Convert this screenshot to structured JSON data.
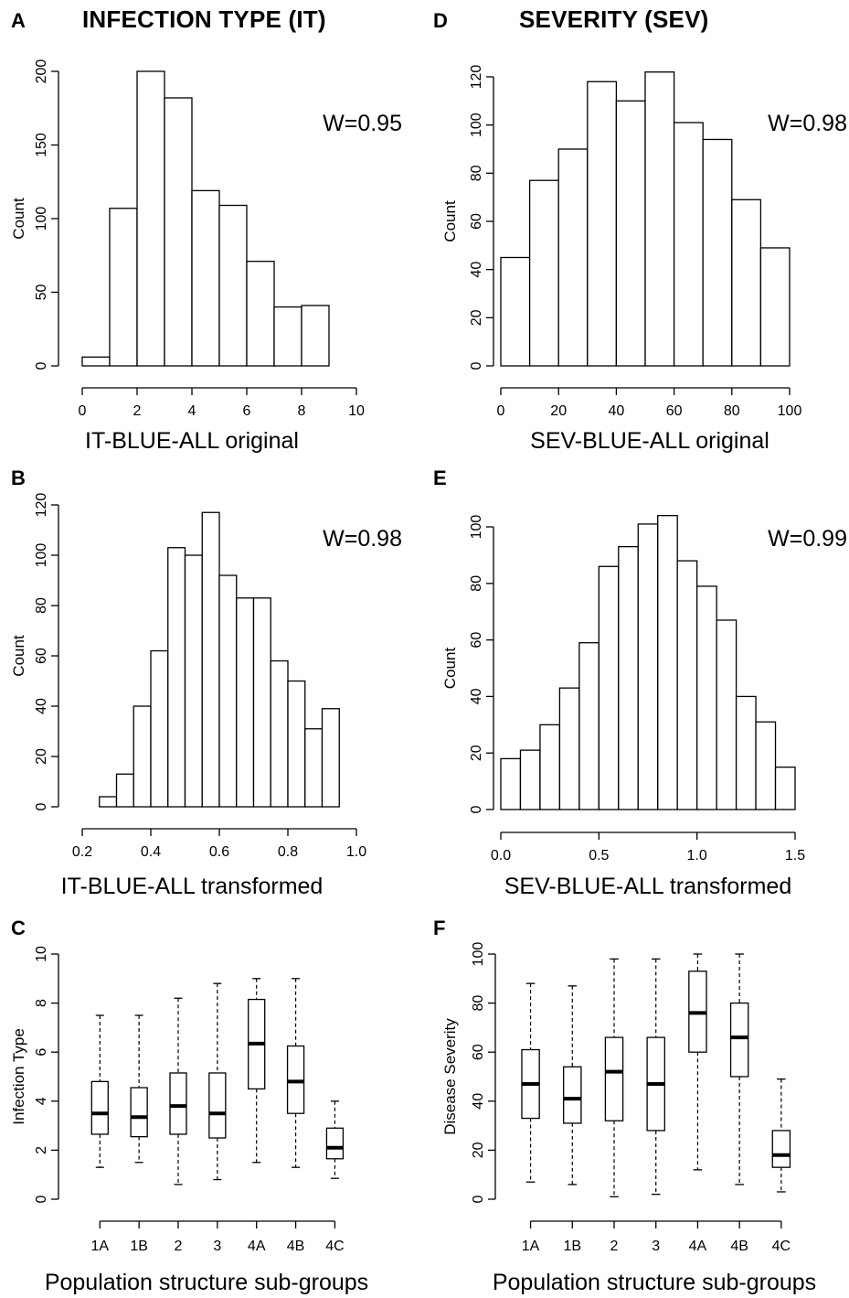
{
  "headers": {
    "left": "INFECTION TYPE (IT)",
    "right": "SEVERITY (SEV)"
  },
  "panel_letters": [
    "A",
    "B",
    "C",
    "D",
    "E",
    "F"
  ],
  "chart_data": [
    {
      "id": "A",
      "type": "bar",
      "bins": [
        [
          0,
          1
        ],
        [
          1,
          2
        ],
        [
          2,
          3
        ],
        [
          3,
          4
        ],
        [
          4,
          5
        ],
        [
          5,
          6
        ],
        [
          6,
          7
        ],
        [
          7,
          8
        ],
        [
          8,
          9
        ]
      ],
      "values": [
        6,
        107,
        200,
        182,
        119,
        109,
        71,
        40,
        41
      ],
      "xlim": [
        0,
        10
      ],
      "ylim": [
        0,
        200
      ],
      "xticks": [
        0,
        2,
        4,
        6,
        8,
        10
      ],
      "yticks": [
        0,
        50,
        100,
        150,
        200
      ],
      "xlabel": "IT-BLUE-ALL original",
      "ylabel": "Count",
      "annotation": "W=0.95",
      "grid": false
    },
    {
      "id": "B",
      "type": "bar",
      "bins": [
        [
          0.25,
          0.3
        ],
        [
          0.3,
          0.35
        ],
        [
          0.35,
          0.4
        ],
        [
          0.4,
          0.45
        ],
        [
          0.45,
          0.5
        ],
        [
          0.5,
          0.55
        ],
        [
          0.55,
          0.6
        ],
        [
          0.6,
          0.65
        ],
        [
          0.65,
          0.7
        ],
        [
          0.7,
          0.75
        ],
        [
          0.75,
          0.8
        ],
        [
          0.8,
          0.85
        ],
        [
          0.85,
          0.9
        ],
        [
          0.9,
          0.95
        ]
      ],
      "values": [
        4,
        13,
        40,
        62,
        103,
        100,
        117,
        92,
        83,
        83,
        58,
        50,
        31,
        39
      ],
      "xlim": [
        0.2,
        1.0
      ],
      "ylim": [
        0,
        120
      ],
      "xticks": [
        "0.2",
        "0.4",
        "0.6",
        "0.8",
        "1.0"
      ],
      "yticks": [
        0,
        20,
        40,
        60,
        80,
        100,
        120
      ],
      "xlabel": "IT-BLUE-ALL transformed",
      "ylabel": "Count",
      "annotation": "W=0.98",
      "grid": false
    },
    {
      "id": "C",
      "type": "box",
      "categories": [
        "1A",
        "1B",
        "2",
        "3",
        "4A",
        "4B",
        "4C"
      ],
      "boxes": [
        {
          "min": 1.3,
          "q1": 2.65,
          "median": 3.5,
          "q3": 4.8,
          "max": 7.5
        },
        {
          "min": 1.5,
          "q1": 2.55,
          "median": 3.35,
          "q3": 4.55,
          "max": 7.5
        },
        {
          "min": 0.6,
          "q1": 2.65,
          "median": 3.8,
          "q3": 5.15,
          "max": 8.2
        },
        {
          "min": 0.8,
          "q1": 2.5,
          "median": 3.5,
          "q3": 5.15,
          "max": 8.8
        },
        {
          "min": 1.5,
          "q1": 4.5,
          "median": 6.35,
          "q3": 8.15,
          "max": 9.0
        },
        {
          "min": 1.3,
          "q1": 3.5,
          "median": 4.8,
          "q3": 6.25,
          "max": 9.0
        },
        {
          "min": 0.85,
          "q1": 1.65,
          "median": 2.1,
          "q3": 2.9,
          "max": 4.0
        }
      ],
      "ylim": [
        0,
        10
      ],
      "yticks": [
        0,
        2,
        4,
        6,
        8,
        10
      ],
      "xlabel": "Population structure sub-groups",
      "ylabel": "Infection Type",
      "grid": false
    },
    {
      "id": "D",
      "type": "bar",
      "bins": [
        [
          0,
          10
        ],
        [
          10,
          20
        ],
        [
          20,
          30
        ],
        [
          30,
          40
        ],
        [
          40,
          50
        ],
        [
          50,
          60
        ],
        [
          60,
          70
        ],
        [
          70,
          80
        ],
        [
          80,
          90
        ],
        [
          90,
          100
        ]
      ],
      "values": [
        45,
        77,
        90,
        118,
        110,
        122,
        101,
        94,
        69,
        49
      ],
      "xlim": [
        0,
        100
      ],
      "ylim": [
        0,
        120
      ],
      "xticks": [
        0,
        20,
        40,
        60,
        80,
        100
      ],
      "yticks": [
        0,
        20,
        40,
        60,
        80,
        100,
        120
      ],
      "xlabel": "SEV-BLUE-ALL original",
      "ylabel": "Count",
      "annotation": "W=0.98",
      "grid": false
    },
    {
      "id": "E",
      "type": "bar",
      "bins": [
        [
          0,
          0.1
        ],
        [
          0.1,
          0.2
        ],
        [
          0.2,
          0.3
        ],
        [
          0.3,
          0.4
        ],
        [
          0.4,
          0.5
        ],
        [
          0.5,
          0.6
        ],
        [
          0.6,
          0.7
        ],
        [
          0.7,
          0.8
        ],
        [
          0.8,
          0.9
        ],
        [
          0.9,
          1.0
        ],
        [
          1.0,
          1.1
        ],
        [
          1.1,
          1.2
        ],
        [
          1.2,
          1.3
        ],
        [
          1.3,
          1.4
        ],
        [
          1.4,
          1.5
        ]
      ],
      "values": [
        18,
        21,
        30,
        43,
        59,
        86,
        93,
        101,
        104,
        88,
        79,
        67,
        40,
        31,
        15
      ],
      "xlim": [
        0,
        1.5
      ],
      "ylim": [
        0,
        100
      ],
      "xticks": [
        "0.0",
        "0.5",
        "1.0",
        "1.5"
      ],
      "yticks": [
        0,
        20,
        40,
        60,
        80,
        100
      ],
      "xlabel": "SEV-BLUE-ALL transformed",
      "ylabel": "Count",
      "annotation": "W=0.99",
      "grid": false
    },
    {
      "id": "F",
      "type": "box",
      "categories": [
        "1A",
        "1B",
        "2",
        "3",
        "4A",
        "4B",
        "4C"
      ],
      "boxes": [
        {
          "min": 7,
          "q1": 33,
          "median": 47,
          "q3": 61,
          "max": 88
        },
        {
          "min": 6,
          "q1": 31,
          "median": 41,
          "q3": 54,
          "max": 87
        },
        {
          "min": 1,
          "q1": 32,
          "median": 52,
          "q3": 66,
          "max": 98
        },
        {
          "min": 2,
          "q1": 28,
          "median": 47,
          "q3": 66,
          "max": 98
        },
        {
          "min": 12,
          "q1": 60,
          "median": 76,
          "q3": 93,
          "max": 100
        },
        {
          "min": 6,
          "q1": 50,
          "median": 66,
          "q3": 80,
          "max": 100
        },
        {
          "min": 3,
          "q1": 13,
          "median": 18,
          "q3": 28,
          "max": 49
        }
      ],
      "ylim": [
        0,
        100
      ],
      "yticks": [
        0,
        20,
        40,
        60,
        80,
        100
      ],
      "xlabel": "Population structure sub-groups",
      "ylabel": "Disease Severity",
      "grid": false
    }
  ]
}
